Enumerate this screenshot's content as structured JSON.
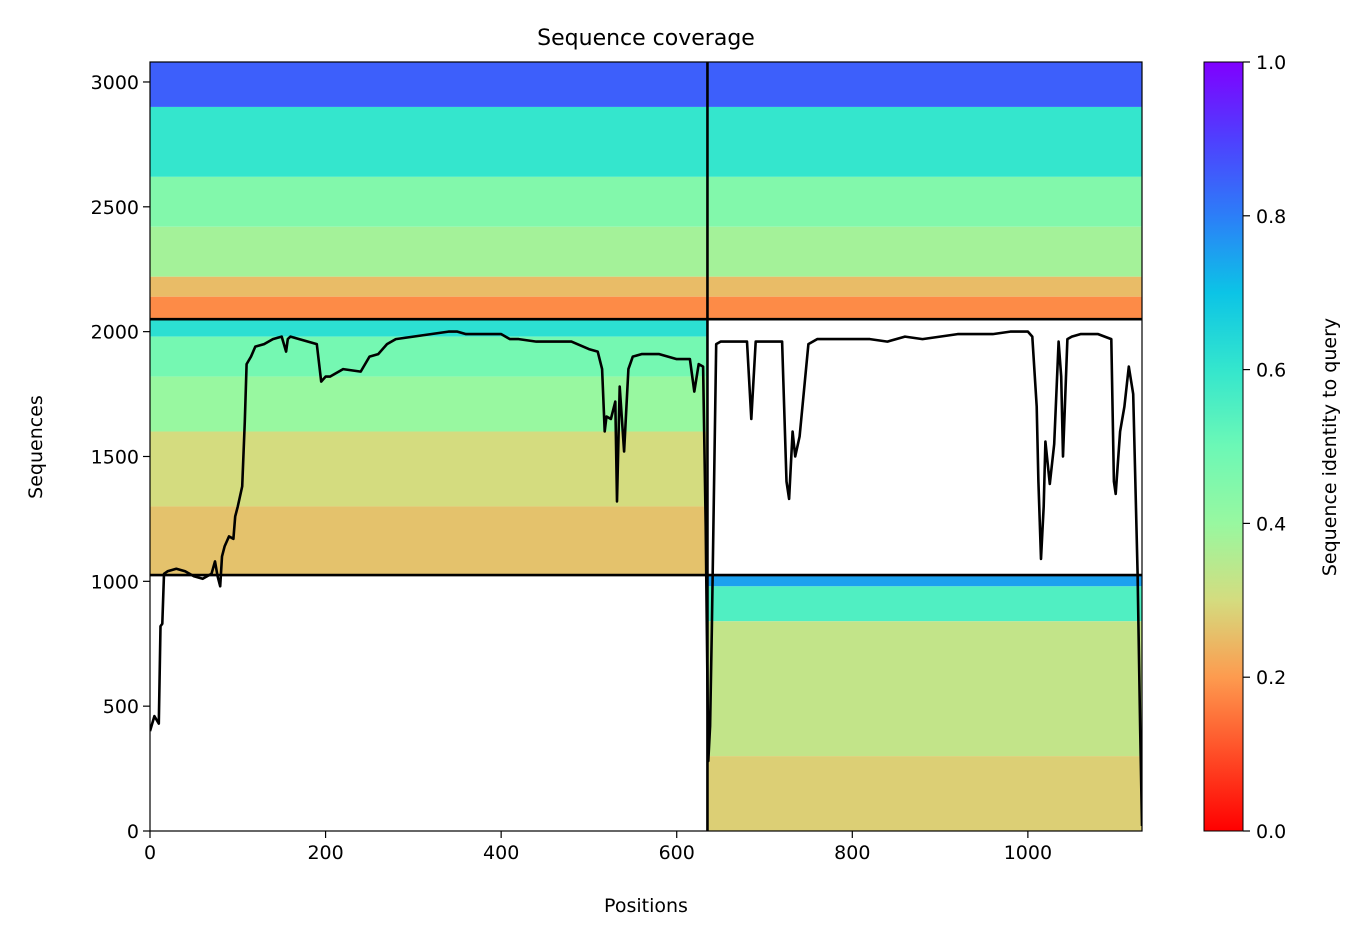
{
  "chart_data": {
    "type": "heatmap",
    "title": "Sequence coverage",
    "xlabel": "Positions",
    "ylabel": "Sequences",
    "xlim": [
      0,
      1130
    ],
    "ylim": [
      0,
      3080
    ],
    "xticks": [
      0,
      200,
      400,
      600,
      800,
      1000
    ],
    "yticks": [
      0,
      500,
      1000,
      1500,
      2000,
      2500,
      3000
    ],
    "grid": false,
    "colorbar": {
      "label": "Sequence identity to query",
      "range": [
        0,
        1
      ],
      "ticks": [
        "0.0",
        "0.2",
        "0.4",
        "0.6",
        "0.8",
        "1.0"
      ],
      "colormap": "rainbow_r"
    },
    "chain_boundaries": {
      "x": [
        0,
        635,
        1130
      ],
      "y": [
        0,
        1025,
        2050,
        3080
      ]
    },
    "msa_blocks": [
      {
        "x": [
          0,
          635
        ],
        "y": [
          2050,
          3080
        ],
        "bands": [
          {
            "y": [
              2900,
              3080
            ],
            "identity": 0.85
          },
          {
            "y": [
              2620,
              2900
            ],
            "identity": 0.6
          },
          {
            "y": [
              2420,
              2620
            ],
            "identity": 0.45
          },
          {
            "y": [
              2220,
              2420
            ],
            "identity": 0.38
          },
          {
            "y": [
              2140,
              2220
            ],
            "identity": 0.25
          },
          {
            "y": [
              2050,
              2140
            ],
            "identity": 0.18
          }
        ]
      },
      {
        "x": [
          635,
          1130
        ],
        "y": [
          2050,
          3080
        ],
        "bands": [
          {
            "y": [
              2900,
              3080
            ],
            "identity": 0.85
          },
          {
            "y": [
              2620,
              2900
            ],
            "identity": 0.6
          },
          {
            "y": [
              2420,
              2620
            ],
            "identity": 0.45
          },
          {
            "y": [
              2220,
              2420
            ],
            "identity": 0.38
          },
          {
            "y": [
              2140,
              2220
            ],
            "identity": 0.25
          },
          {
            "y": [
              2050,
              2140
            ],
            "identity": 0.18
          }
        ]
      },
      {
        "x": [
          0,
          635
        ],
        "y": [
          1025,
          2050
        ],
        "bands": [
          {
            "y": [
              1980,
              2050
            ],
            "identity": 0.62
          },
          {
            "y": [
              1820,
              1980
            ],
            "identity": 0.48
          },
          {
            "y": [
              1600,
              1820
            ],
            "identity": 0.4
          },
          {
            "y": [
              1300,
              1600
            ],
            "identity": 0.3
          },
          {
            "y": [
              1025,
              1300
            ],
            "identity": 0.26
          }
        ]
      },
      {
        "x": [
          635,
          1130
        ],
        "y": [
          0,
          1025
        ],
        "bands": [
          {
            "y": [
              980,
              1025
            ],
            "identity": 0.75
          },
          {
            "y": [
              840,
              980
            ],
            "identity": 0.55
          },
          {
            "y": [
              300,
              840
            ],
            "identity": 0.33
          },
          {
            "y": [
              0,
              300
            ],
            "identity": 0.28
          }
        ]
      }
    ],
    "coverage_line": {
      "x": [
        0,
        5,
        10,
        12,
        14,
        16,
        20,
        30,
        40,
        50,
        60,
        70,
        74,
        77,
        80,
        82,
        85,
        90,
        95,
        97,
        100,
        105,
        108,
        110,
        115,
        120,
        130,
        140,
        150,
        155,
        157,
        160,
        170,
        190,
        195,
        200,
        205,
        220,
        240,
        245,
        250,
        260,
        270,
        280,
        300,
        320,
        340,
        350,
        360,
        380,
        400,
        410,
        420,
        440,
        460,
        480,
        500,
        510,
        515,
        518,
        520,
        525,
        530,
        532,
        535,
        540,
        545,
        550,
        560,
        580,
        600,
        615,
        620,
        625,
        630,
        633,
        636,
        638,
        640,
        645,
        650,
        660,
        670,
        680,
        685,
        690,
        700,
        720,
        725,
        728,
        732,
        735,
        740,
        750,
        760,
        780,
        800,
        820,
        840,
        860,
        880,
        900,
        920,
        940,
        960,
        980,
        1000,
        1005,
        1010,
        1012,
        1015,
        1018,
        1020,
        1025,
        1030,
        1035,
        1038,
        1040,
        1045,
        1050,
        1060,
        1080,
        1095,
        1098,
        1100,
        1105,
        1110,
        1115,
        1120,
        1125,
        1128,
        1130
      ],
      "y": [
        400,
        460,
        430,
        820,
        830,
        1030,
        1040,
        1050,
        1040,
        1020,
        1010,
        1030,
        1080,
        1020,
        980,
        1100,
        1140,
        1180,
        1170,
        1260,
        1300,
        1380,
        1640,
        1870,
        1900,
        1940,
        1950,
        1970,
        1980,
        1920,
        1970,
        1980,
        1970,
        1950,
        1800,
        1820,
        1820,
        1850,
        1840,
        1870,
        1900,
        1910,
        1950,
        1970,
        1980,
        1990,
        2000,
        2000,
        1990,
        1990,
        1990,
        1970,
        1970,
        1960,
        1960,
        1960,
        1930,
        1920,
        1850,
        1600,
        1660,
        1650,
        1720,
        1320,
        1780,
        1520,
        1850,
        1900,
        1910,
        1910,
        1890,
        1890,
        1760,
        1870,
        1860,
        1220,
        280,
        420,
        800,
        1950,
        1960,
        1960,
        1960,
        1960,
        1650,
        1960,
        1960,
        1960,
        1400,
        1330,
        1600,
        1500,
        1580,
        1950,
        1970,
        1970,
        1970,
        1970,
        1960,
        1980,
        1970,
        1980,
        1990,
        1990,
        1990,
        2000,
        2000,
        1980,
        1700,
        1400,
        1090,
        1300,
        1560,
        1390,
        1550,
        1960,
        1820,
        1500,
        1970,
        1980,
        1990,
        1990,
        1970,
        1400,
        1350,
        1600,
        1700,
        1860,
        1750,
        1030,
        400,
        20
      ]
    }
  }
}
